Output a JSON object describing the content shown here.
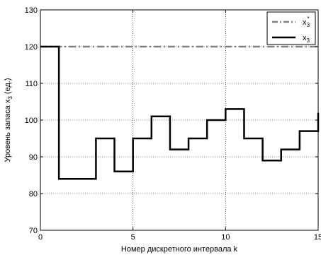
{
  "chart_data": {
    "type": "line",
    "xlabel": "Номер дискретного интервала k",
    "ylabel": "Уровень запаса x",
    "ylabel_sub": "3",
    "ylabel_suffix": " (ед.)",
    "xlim": [
      0,
      15
    ],
    "ylim": [
      70,
      130
    ],
    "x_ticks": [
      0,
      5,
      10,
      15
    ],
    "y_ticks": [
      70,
      80,
      90,
      100,
      110,
      120,
      130
    ],
    "grid": true,
    "grid_style": "dotted",
    "legend_position": "top-right",
    "series": [
      {
        "name": "x3*",
        "legend_base": "x",
        "legend_sup": "*",
        "legend_sub": "3",
        "style": "dash-dot",
        "color": "#808080",
        "x": [
          0,
          15
        ],
        "y": [
          120,
          120
        ]
      },
      {
        "name": "x3",
        "legend_base": "x",
        "legend_sup": "",
        "legend_sub": "3",
        "style": "solid-step",
        "color": "#000000",
        "x": [
          0,
          1,
          2,
          3,
          4,
          5,
          6,
          7,
          8,
          9,
          10,
          11,
          12,
          13,
          14,
          15
        ],
        "y": [
          120,
          84,
          84,
          95,
          86,
          95,
          101,
          92,
          95,
          100,
          103,
          95,
          89,
          92,
          97,
          102
        ]
      }
    ]
  }
}
